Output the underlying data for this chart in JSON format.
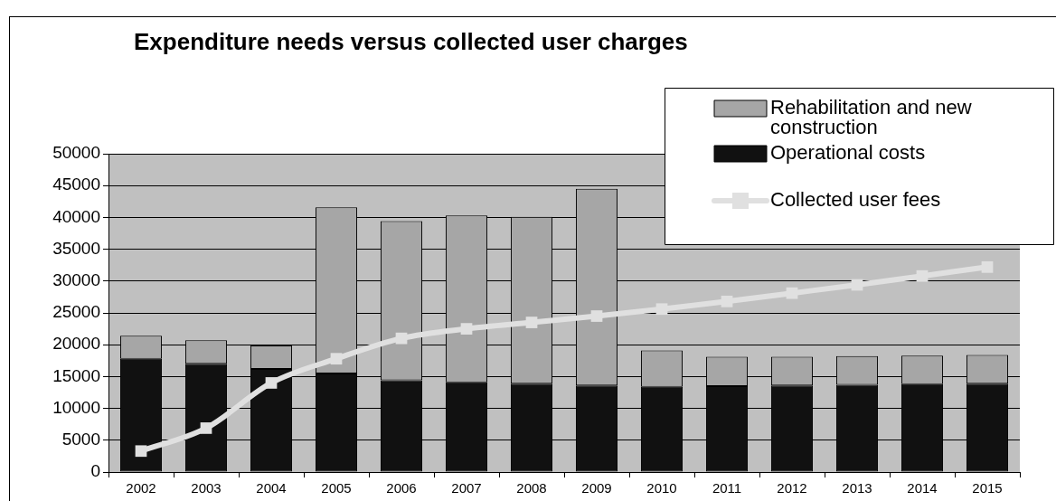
{
  "chart_data": {
    "type": "bar",
    "title": "Expenditure needs versus collected user charges",
    "stacked": true,
    "categories": [
      "2002",
      "2003",
      "2004",
      "2005",
      "2006",
      "2007",
      "2008",
      "2009",
      "2010",
      "2011",
      "2012",
      "2013",
      "2014",
      "2015"
    ],
    "series": [
      {
        "name": "Operational costs",
        "color": "#111111",
        "values": [
          17800,
          17000,
          16200,
          15500,
          14400,
          14100,
          13900,
          13600,
          13400,
          13500,
          13600,
          13700,
          13800,
          13900
        ]
      },
      {
        "name": "Rehabilitation and new construction",
        "color": "#a6a6a6",
        "values": [
          3600,
          3700,
          3700,
          26100,
          25000,
          26200,
          26200,
          30900,
          5700,
          4600,
          4500,
          4500,
          4500,
          4500
        ]
      },
      {
        "name": "Collected user fees",
        "type": "line",
        "color": "#e0e0e0",
        "values": [
          3300,
          6900,
          14000,
          17800,
          21000,
          22500,
          23500,
          24500,
          25600,
          26800,
          28100,
          29400,
          30800,
          32200
        ]
      }
    ],
    "ylim": [
      0,
      50000
    ],
    "yticks": [
      0,
      5000,
      10000,
      15000,
      20000,
      25000,
      30000,
      35000,
      40000,
      45000,
      50000
    ],
    "grid": "y",
    "legend": "top right",
    "marker": "square"
  }
}
